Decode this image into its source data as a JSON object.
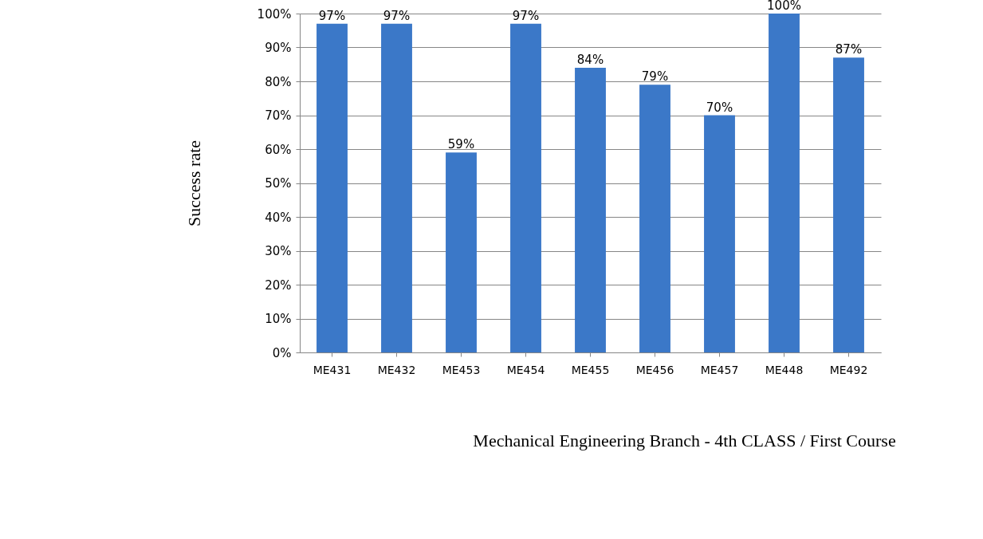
{
  "chart_data": {
    "type": "bar",
    "xlabel": "Mechanical Engineering Branch - 4th CLASS / First Course",
    "ylabel": "Success rate",
    "categories": [
      "ME431",
      "ME432",
      "ME453",
      "ME454",
      "ME455",
      "ME456",
      "ME457",
      "ME448",
      "ME492"
    ],
    "values": [
      97,
      97,
      59,
      97,
      84,
      79,
      70,
      100,
      87
    ],
    "value_labels": [
      "97%",
      "97%",
      "59%",
      "97%",
      "84%",
      "79%",
      "70%",
      "100%",
      "87%"
    ],
    "color": "#3b78c8",
    "ylim": [
      0,
      100
    ],
    "yticks": [
      {
        "value": 0,
        "label": "0%"
      },
      {
        "value": 10,
        "label": "10%"
      },
      {
        "value": 20,
        "label": "20%"
      },
      {
        "value": 30,
        "label": "30%"
      },
      {
        "value": 40,
        "label": "40%"
      },
      {
        "value": 50,
        "label": "50%"
      },
      {
        "value": 60,
        "label": "60%"
      },
      {
        "value": 70,
        "label": "70%"
      },
      {
        "value": 80,
        "label": "80%"
      },
      {
        "value": 90,
        "label": "90%"
      },
      {
        "value": 100,
        "label": "100%"
      }
    ],
    "grid": "y"
  }
}
